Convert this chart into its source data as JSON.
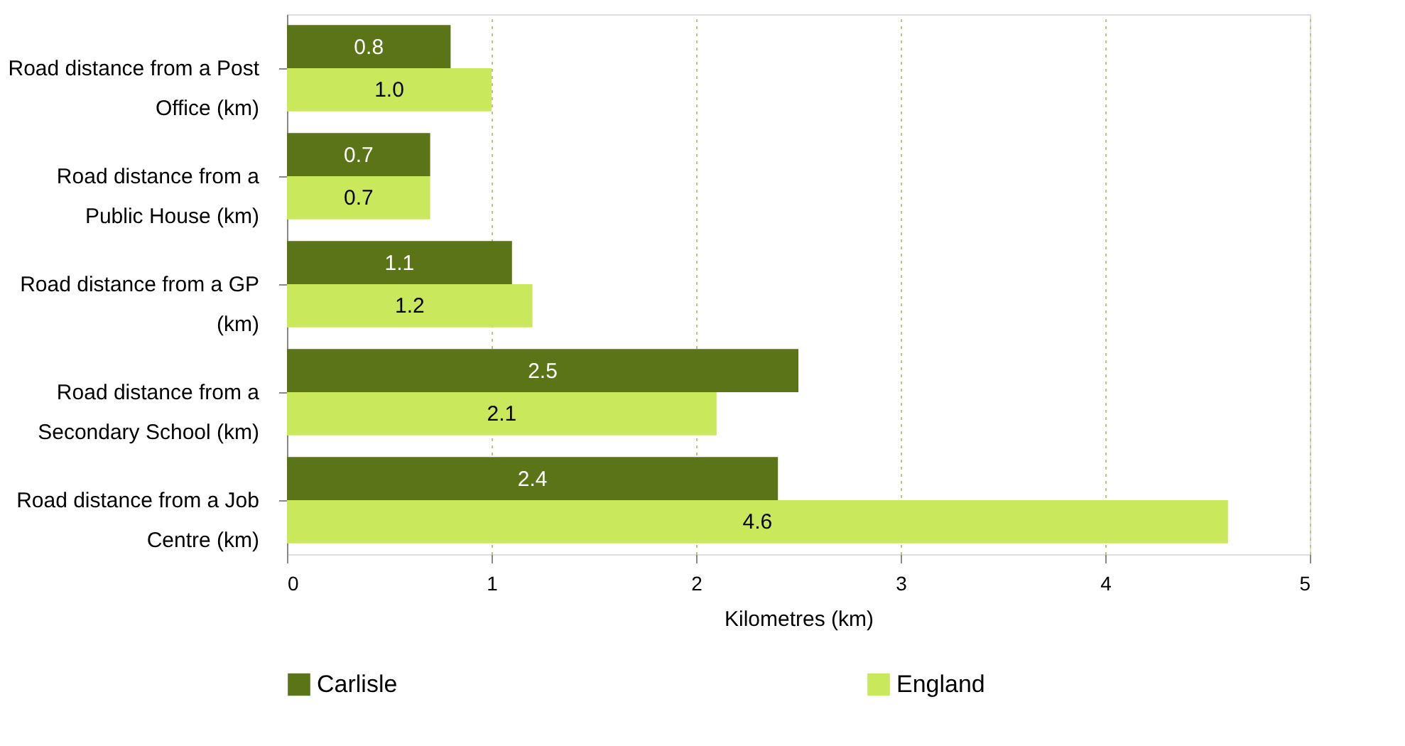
{
  "chart_data": {
    "type": "bar",
    "orientation": "horizontal",
    "xlabel": "Kilometres (km)",
    "categories": [
      "Road distance from a Post Office (km)",
      "Road distance from a Public House (km)",
      "Road distance from a GP (km)",
      "Road distance from a Secondary School (km)",
      "Road distance from a Job Centre (km)"
    ],
    "series": [
      {
        "name": "Carlisle",
        "color": "#5b7417",
        "values": [
          0.8,
          0.7,
          1.1,
          2.5,
          2.4
        ],
        "value_labels": [
          "0.8",
          "0.7",
          "1.1",
          "2.5",
          "2.4"
        ]
      },
      {
        "name": "England",
        "color": "#c9e85c",
        "values": [
          1.0,
          0.7,
          1.2,
          2.1,
          4.6
        ],
        "value_labels": [
          "1.0",
          "0.7",
          "1.2",
          "2.1",
          "4.6"
        ]
      }
    ],
    "xlim": [
      0,
      5
    ],
    "xticks": [
      0,
      1,
      2,
      3,
      4,
      5
    ],
    "grid": "x",
    "legend": "bottom"
  }
}
